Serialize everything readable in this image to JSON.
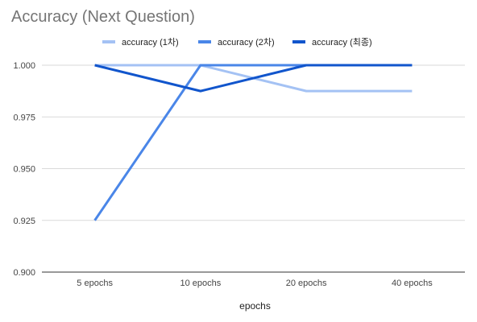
{
  "chart_data": {
    "type": "line",
    "title": "Accuracy (Next Question)",
    "xlabel": "epochs",
    "ylabel": "",
    "categories": [
      "5 epochs",
      "10 epochs",
      "20 epochs",
      "40 epochs"
    ],
    "ylim": [
      0.9,
      1.0
    ],
    "yticks": [
      "1.000",
      "0.975",
      "0.950",
      "0.925",
      "0.900"
    ],
    "grid": true,
    "legend_position": "top",
    "series": [
      {
        "name": "accuracy (1차)",
        "color": "#a4c2f4",
        "values": [
          1.0,
          1.0,
          0.9875,
          0.9875
        ]
      },
      {
        "name": "accuracy (2차)",
        "color": "#4a86e8",
        "values": [
          0.925,
          1.0,
          1.0,
          1.0
        ]
      },
      {
        "name": "accuracy (최종)",
        "color": "#1155cc",
        "values": [
          1.0,
          0.9875,
          1.0,
          1.0
        ]
      }
    ]
  }
}
